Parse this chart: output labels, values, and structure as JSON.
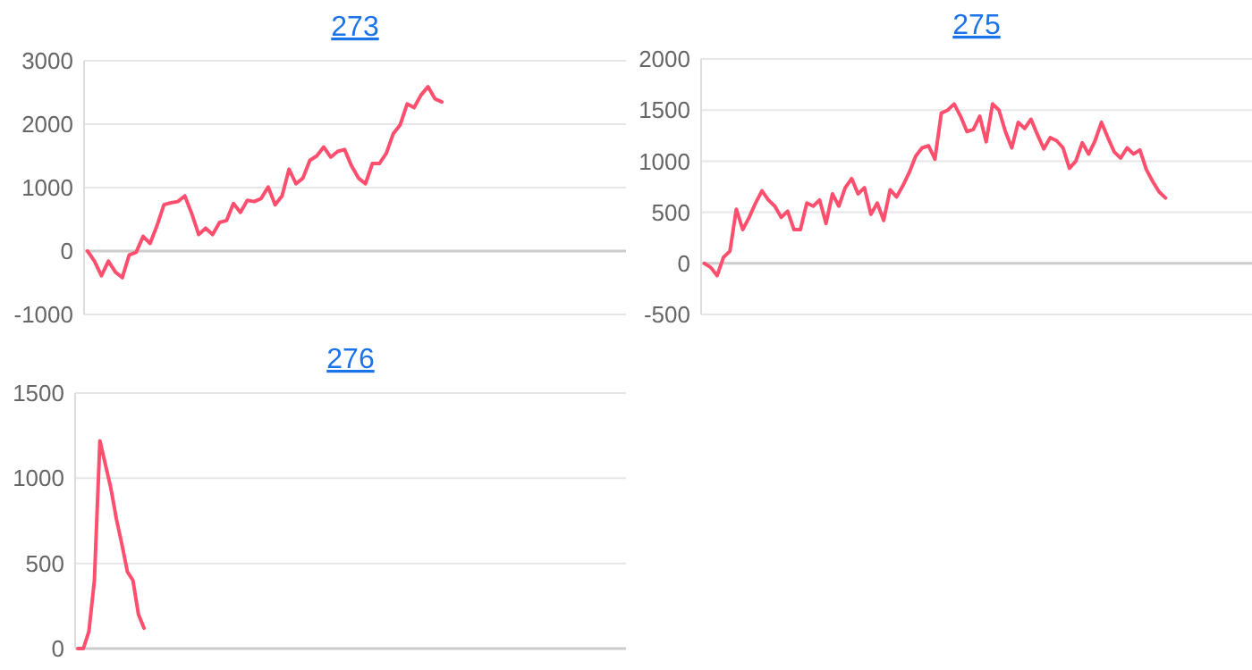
{
  "chart_data": [
    {
      "type": "line",
      "title": "273",
      "grid": "y",
      "ylim": [
        -1000,
        3000
      ],
      "yticks": [
        -1000,
        0,
        1000,
        2000,
        3000
      ],
      "categories": [
        null,
        null,
        null,
        null,
        null,
        null,
        null,
        null,
        null,
        null,
        null,
        null,
        null,
        null,
        null,
        null,
        null,
        null,
        null,
        null,
        null,
        null,
        null,
        null,
        null,
        null,
        null,
        null,
        null,
        null,
        null,
        null,
        null,
        null,
        null,
        null,
        null,
        null,
        null,
        null,
        null,
        null,
        null,
        null,
        null,
        null,
        null,
        null,
        null,
        null,
        null,
        null,
        null,
        null,
        null,
        null,
        null,
        null,
        null,
        null,
        null,
        null,
        null,
        null,
        null,
        null,
        null,
        null,
        null,
        null,
        null,
        null,
        null,
        null,
        null,
        null,
        null,
        null
      ],
      "series": [
        {
          "color": "#ff4f6e",
          "values": [
            0,
            -160,
            -390,
            -160,
            -330,
            -420,
            -60,
            -20,
            230,
            120,
            400,
            730,
            760,
            780,
            870,
            590,
            260,
            360,
            260,
            450,
            480,
            750,
            610,
            800,
            780,
            830,
            1010,
            730,
            870,
            1290,
            1060,
            1150,
            1430,
            1500,
            1640,
            1480,
            1570,
            1600,
            1340,
            1150,
            1060,
            1380,
            1380,
            1540,
            1850,
            1990,
            2320,
            2260,
            2460,
            2590,
            2400,
            2350,
            null,
            null,
            null,
            null,
            null,
            null,
            null,
            null,
            null,
            null,
            null,
            null,
            null,
            null,
            null,
            null,
            null,
            null,
            null,
            null,
            null,
            null,
            null,
            null,
            null,
            null
          ]
        }
      ]
    },
    {
      "type": "line",
      "title": "275",
      "grid": "y",
      "ylim": [
        -500,
        2000
      ],
      "yticks": [
        -500,
        0,
        500,
        1000,
        1500,
        2000
      ],
      "categories": [
        null,
        null,
        null,
        null,
        null,
        null,
        null,
        null,
        null,
        null,
        null,
        null,
        null,
        null,
        null,
        null,
        null,
        null,
        null,
        null,
        null,
        null,
        null,
        null,
        null,
        null,
        null,
        null,
        null,
        null,
        null,
        null,
        null,
        null,
        null,
        null,
        null,
        null,
        null,
        null,
        null,
        null,
        null,
        null,
        null,
        null,
        null,
        null,
        null,
        null,
        null,
        null,
        null,
        null,
        null,
        null,
        null,
        null,
        null,
        null,
        null,
        null,
        null,
        null,
        null,
        null,
        null,
        null,
        null,
        null,
        null,
        null,
        null,
        null,
        null,
        null,
        null,
        null,
        null,
        null,
        null,
        null,
        null,
        null,
        null,
        null
      ],
      "series": [
        {
          "color": "#ff4f6e",
          "values": [
            0,
            -40,
            -120,
            60,
            120,
            530,
            330,
            450,
            590,
            710,
            620,
            560,
            450,
            510,
            330,
            330,
            590,
            560,
            620,
            390,
            680,
            560,
            740,
            830,
            680,
            740,
            480,
            590,
            420,
            720,
            650,
            760,
            890,
            1050,
            1130,
            1150,
            1020,
            1470,
            1500,
            1560,
            1440,
            1290,
            1310,
            1440,
            1190,
            1560,
            1500,
            1290,
            1130,
            1380,
            1320,
            1410,
            1260,
            1120,
            1230,
            1200,
            1130,
            930,
            1000,
            1180,
            1070,
            1200,
            1380,
            1230,
            1090,
            1030,
            1130,
            1070,
            1110,
            920,
            800,
            700,
            640,
            null,
            null,
            null,
            null,
            null,
            null,
            null,
            null,
            null,
            null,
            null,
            null,
            null
          ]
        }
      ]
    },
    {
      "type": "line",
      "title": "276",
      "grid": "y",
      "ylim": [
        0,
        1500
      ],
      "yticks": [
        0,
        500,
        1000,
        1500
      ],
      "categories": [
        null,
        null,
        null,
        null,
        null,
        null,
        null,
        null,
        null,
        null,
        null,
        null,
        null,
        null,
        null,
        null,
        null,
        null,
        null,
        null,
        null,
        null,
        null,
        null,
        null,
        null,
        null,
        null,
        null,
        null,
        null,
        null,
        null,
        null,
        null,
        null,
        null,
        null,
        null,
        null,
        null,
        null,
        null,
        null,
        null,
        null,
        null,
        null,
        null,
        null,
        null,
        null,
        null,
        null,
        null,
        null,
        null,
        null,
        null,
        null,
        null,
        null,
        null,
        null,
        null,
        null,
        null,
        null,
        null,
        null,
        null,
        null,
        null,
        null,
        null,
        null,
        null,
        null,
        null,
        null,
        null,
        null,
        null,
        null,
        null,
        null,
        null,
        null,
        null,
        null,
        null,
        null,
        null,
        null,
        null,
        null,
        null,
        null,
        null,
        null
      ],
      "series": [
        {
          "color": "#ff4f6e",
          "values": [
            0,
            0,
            100,
            400,
            1220,
            1080,
            940,
            760,
            610,
            450,
            400,
            200,
            120,
            null,
            null,
            null,
            null,
            null,
            null,
            null,
            null,
            null,
            null,
            null,
            null,
            null,
            null,
            null,
            null,
            null,
            null,
            null,
            null,
            null,
            null,
            null,
            null,
            null,
            null,
            null,
            null,
            null,
            null,
            null,
            null,
            null,
            null,
            null,
            null,
            null,
            null,
            null,
            null,
            null,
            null,
            null,
            null,
            null,
            null,
            null,
            null,
            null,
            null,
            null,
            null,
            null,
            null,
            null,
            null,
            null,
            null,
            null,
            null,
            null,
            null,
            null,
            null,
            null,
            null,
            null,
            null,
            null,
            null,
            null,
            null,
            null,
            null,
            null,
            null,
            null,
            null,
            null,
            null,
            null,
            null,
            null,
            null,
            null,
            null,
            null
          ]
        }
      ]
    }
  ]
}
